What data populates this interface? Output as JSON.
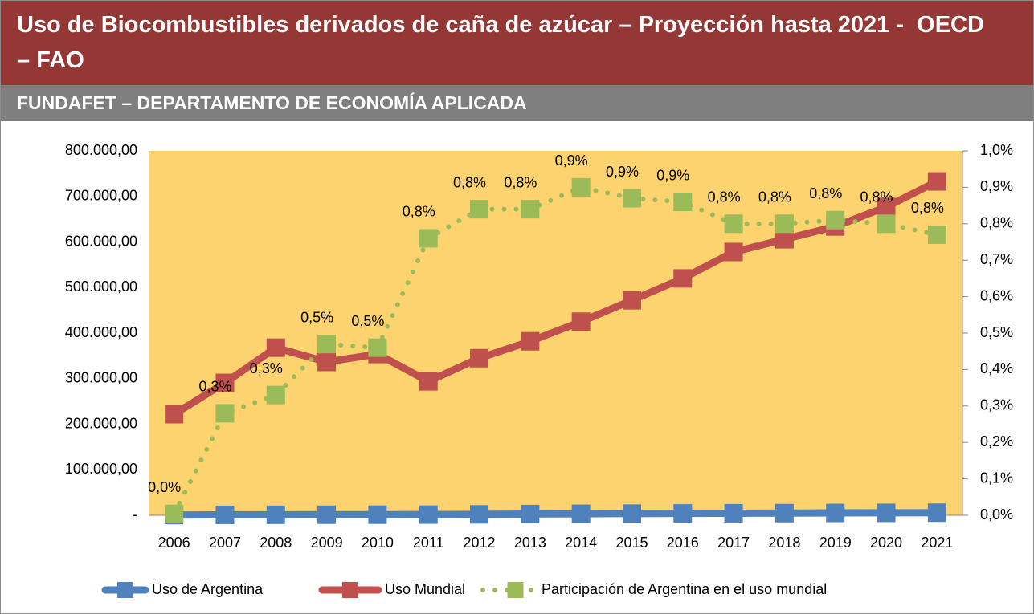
{
  "chart_data": {
    "type": "line",
    "title": "Uso de Biocombustibles derivados de caña de azúcar – Proyección hasta 2021 -  OECD – FAO",
    "subtitle": "FUNDAFET – DEPARTAMENTO DE ECONOMÍA APLICADA",
    "categories": [
      "2006",
      "2007",
      "2008",
      "2009",
      "2010",
      "2011",
      "2012",
      "2013",
      "2014",
      "2015",
      "2016",
      "2017",
      "2018",
      "2019",
      "2020",
      "2021"
    ],
    "series": [
      {
        "name": "Uso de Argentina",
        "color": "#4f81bd",
        "style": "solid",
        "values": [
          500,
          1000,
          1200,
          1300,
          1400,
          1600,
          2000,
          2800,
          3400,
          3800,
          4200,
          4500,
          4800,
          5200,
          5400,
          5700
        ]
      },
      {
        "name": "Uso Mundial",
        "color": "#c0504d",
        "style": "solid",
        "values": [
          222000,
          290700,
          368000,
          336600,
          354000,
          294000,
          345000,
          382000,
          425000,
          472000,
          520000,
          578000,
          606000,
          634000,
          677000,
          733000
        ]
      },
      {
        "name": "Participación de Argentina en el uso mundial",
        "color": "#9bbb59",
        "style": "dotted",
        "axis": "y2",
        "values": [
          0.004,
          0.28,
          0.33,
          0.47,
          0.46,
          0.76,
          0.84,
          0.84,
          0.9,
          0.87,
          0.86,
          0.8,
          0.8,
          0.81,
          0.8,
          0.77
        ],
        "value_labels": [
          "0,0%",
          "0,3%",
          "0,3%",
          "0,5%",
          "0,5%",
          "0,8%",
          "0,8%",
          "0,8%",
          "0,9%",
          "0,9%",
          "0,9%",
          "0,8%",
          "0,8%",
          "0,8%",
          "0,8%",
          "0,8%"
        ]
      }
    ],
    "ylim": [
      0,
      800000
    ],
    "yticks": [
      {
        "value": 0,
        "label": "-"
      },
      {
        "value": 100000,
        "label": "100.000,00"
      },
      {
        "value": 200000,
        "label": "200.000,00"
      },
      {
        "value": 300000,
        "label": "300.000,00"
      },
      {
        "value": 400000,
        "label": "400.000,00"
      },
      {
        "value": 500000,
        "label": "500.000,00"
      },
      {
        "value": 600000,
        "label": "600.000,00"
      },
      {
        "value": 700000,
        "label": "700.000,00"
      },
      {
        "value": 800000,
        "label": "800.000,00"
      }
    ],
    "y2lim": [
      0,
      1
    ],
    "y2ticks": [
      {
        "value": 0,
        "label": "0,0%"
      },
      {
        "value": 0.1,
        "label": "0,1%"
      },
      {
        "value": 0.2,
        "label": "0,2%"
      },
      {
        "value": 0.3,
        "label": "0,3%"
      },
      {
        "value": 0.4,
        "label": "0,4%"
      },
      {
        "value": 0.5,
        "label": "0,5%"
      },
      {
        "value": 0.6,
        "label": "0,6%"
      },
      {
        "value": 0.7,
        "label": "0,7%"
      },
      {
        "value": 0.8,
        "label": "0,8%"
      },
      {
        "value": 0.9,
        "label": "0,9%"
      },
      {
        "value": 1,
        "label": "1,0%"
      }
    ],
    "plot_color": "#fdd36f",
    "grid": false,
    "legend": "bottom"
  }
}
